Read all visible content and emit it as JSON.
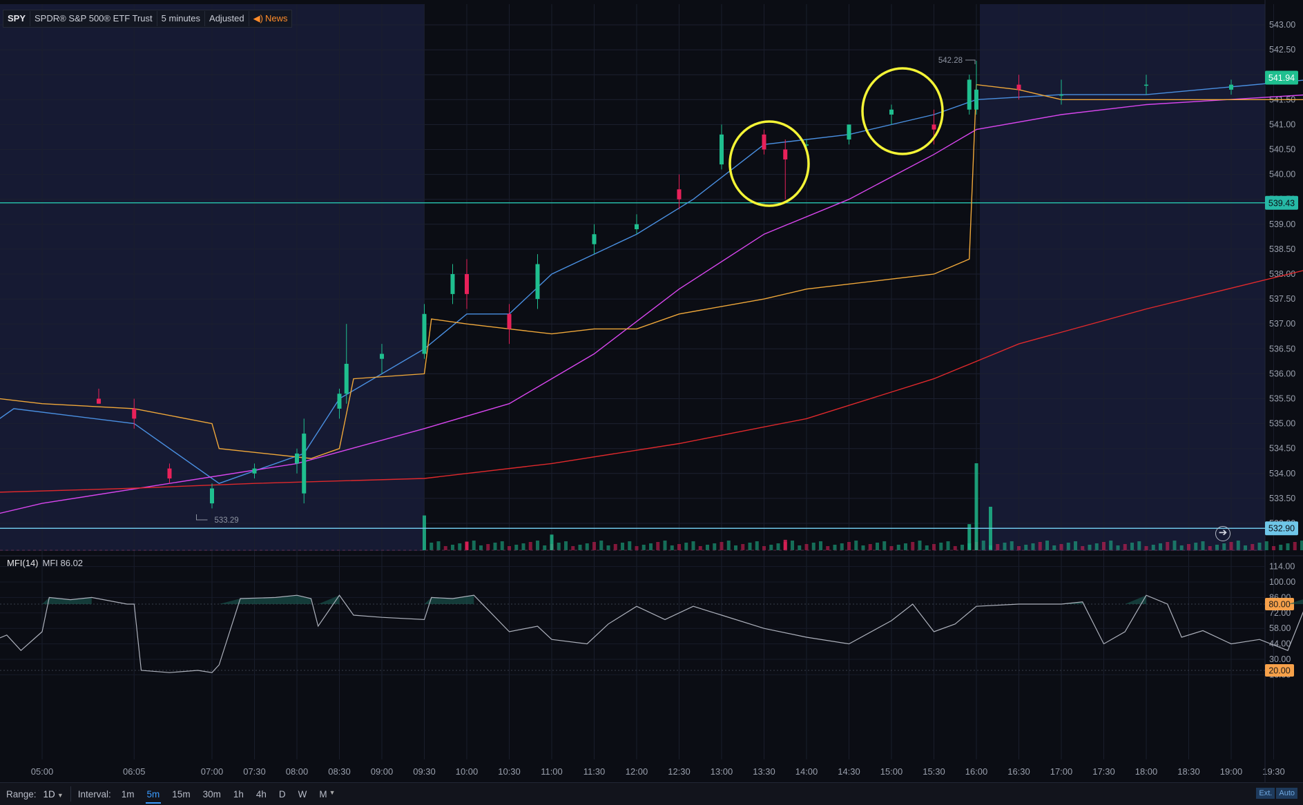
{
  "header": {
    "symbol": "SPY",
    "name": "SPDR® S&P 500® ETF Trust",
    "timeframe": "5 minutes",
    "adjustment": "Adjusted",
    "news": "News"
  },
  "indicator": {
    "name": "MFI(14)",
    "value_text": "MFI 86.02"
  },
  "bottom": {
    "range_label": "Range:",
    "range_value": "1D",
    "interval_label": "Interval:",
    "intervals": [
      "1m",
      "5m",
      "15m",
      "30m",
      "1h",
      "4h",
      "D",
      "W",
      "M"
    ],
    "active_interval": "5m",
    "ext": "Ext.",
    "auto": "Auto"
  },
  "colors": {
    "background": "#0b0d14",
    "extended_hours_bg": "#161a33",
    "up": "#1fbf8f",
    "down": "#e8215a",
    "ema_fast": "#4a90e2",
    "ema_mid": "#d946ef",
    "ema_slow": "#e0292c",
    "vwap": "#f0a83a",
    "level_line": "#26b9a6",
    "level_line_low": "#6fc6e8",
    "mfi_line": "#aeb2bd",
    "mfi_band": "#f7a14a",
    "highlight_circle": "#f4f436"
  },
  "chart_data": [
    {
      "type": "candlestick",
      "title": "",
      "price_axis": {
        "range": [
          532.8,
          543.2
        ],
        "ticks": [
          "543.00",
          "542.50",
          "542.00",
          "541.50",
          "541.00",
          "540.50",
          "540.00",
          "539.50",
          "539.00",
          "538.50",
          "538.00",
          "537.50",
          "537.00",
          "536.50",
          "536.00",
          "535.50",
          "535.00",
          "534.50",
          "534.00",
          "533.50",
          "533.00"
        ],
        "last_price": "541.94",
        "price_labels": [
          "539.43",
          "532.90"
        ],
        "horizontal_lines": [
          539.43,
          532.9
        ]
      },
      "time_axis": {
        "ticks": [
          "05:00",
          "06:05",
          "07:00",
          "07:30",
          "08:00",
          "08:30",
          "09:00",
          "09:30",
          "10:00",
          "10:30",
          "11:00",
          "11:30",
          "12:00",
          "12:30",
          "13:00",
          "13:30",
          "14:00",
          "14:30",
          "15:00",
          "15:30",
          "16:00",
          "16:30",
          "17:00",
          "17:30",
          "18:00",
          "18:30",
          "19:00",
          "19:30"
        ]
      },
      "annotations": {
        "high": "542.28",
        "low": "533.29"
      },
      "regular_session": [
        "09:30",
        "16:00"
      ],
      "candles_sampled": [
        {
          "t": "04:05",
          "o": 535.5,
          "h": 535.7,
          "l": 535.3,
          "c": 535.5
        },
        {
          "t": "05:40",
          "o": 535.5,
          "h": 535.7,
          "l": 535.4,
          "c": 535.4
        },
        {
          "t": "06:05",
          "o": 535.3,
          "h": 535.5,
          "l": 534.9,
          "c": 535.1
        },
        {
          "t": "06:30",
          "o": 534.1,
          "h": 534.2,
          "l": 533.8,
          "c": 533.9
        },
        {
          "t": "07:00",
          "o": 533.4,
          "h": 533.8,
          "l": 533.3,
          "c": 533.7
        },
        {
          "t": "07:30",
          "o": 534.0,
          "h": 534.2,
          "l": 533.9,
          "c": 534.1
        },
        {
          "t": "08:00",
          "o": 534.2,
          "h": 534.5,
          "l": 534.0,
          "c": 534.4
        },
        {
          "t": "08:05",
          "o": 533.6,
          "h": 535.1,
          "l": 533.4,
          "c": 534.8
        },
        {
          "t": "08:30",
          "o": 535.3,
          "h": 535.7,
          "l": 535.1,
          "c": 535.6
        },
        {
          "t": "08:35",
          "o": 535.6,
          "h": 537.0,
          "l": 535.4,
          "c": 536.2
        },
        {
          "t": "09:00",
          "o": 536.3,
          "h": 536.6,
          "l": 536.0,
          "c": 536.4
        },
        {
          "t": "09:30",
          "o": 536.4,
          "h": 537.4,
          "l": 536.3,
          "c": 537.2
        },
        {
          "t": "09:50",
          "o": 537.6,
          "h": 538.2,
          "l": 537.4,
          "c": 538.0
        },
        {
          "t": "10:00",
          "o": 538.0,
          "h": 538.3,
          "l": 537.3,
          "c": 537.6
        },
        {
          "t": "10:30",
          "o": 537.2,
          "h": 537.4,
          "l": 536.6,
          "c": 536.9
        },
        {
          "t": "10:50",
          "o": 537.5,
          "h": 538.4,
          "l": 537.3,
          "c": 538.2
        },
        {
          "t": "11:30",
          "o": 538.6,
          "h": 539.0,
          "l": 538.4,
          "c": 538.8
        },
        {
          "t": "12:00",
          "o": 538.9,
          "h": 539.2,
          "l": 538.8,
          "c": 539.0
        },
        {
          "t": "12:30",
          "o": 539.7,
          "h": 540.0,
          "l": 539.3,
          "c": 539.5
        },
        {
          "t": "13:00",
          "o": 540.2,
          "h": 541.0,
          "l": 540.1,
          "c": 540.8
        },
        {
          "t": "13:30",
          "o": 540.8,
          "h": 540.9,
          "l": 540.4,
          "c": 540.5
        },
        {
          "t": "13:45",
          "o": 540.5,
          "h": 540.7,
          "l": 539.5,
          "c": 540.3
        },
        {
          "t": "14:00",
          "o": 540.6,
          "h": 540.7,
          "l": 540.4,
          "c": 540.6
        },
        {
          "t": "14:30",
          "o": 540.7,
          "h": 541.0,
          "l": 540.6,
          "c": 541.0
        },
        {
          "t": "15:00",
          "o": 541.2,
          "h": 541.4,
          "l": 541.0,
          "c": 541.3
        },
        {
          "t": "15:30",
          "o": 541.0,
          "h": 541.3,
          "l": 540.6,
          "c": 540.9
        },
        {
          "t": "15:55",
          "o": 541.3,
          "h": 542.0,
          "l": 541.2,
          "c": 541.9
        },
        {
          "t": "16:00",
          "o": 541.3,
          "h": 542.28,
          "l": 541.2,
          "c": 541.7
        },
        {
          "t": "16:30",
          "o": 541.8,
          "h": 542.0,
          "l": 541.5,
          "c": 541.7
        },
        {
          "t": "17:00",
          "o": 541.6,
          "h": 541.9,
          "l": 541.4,
          "c": 541.6
        },
        {
          "t": "18:00",
          "o": 541.8,
          "h": 542.0,
          "l": 541.6,
          "c": 541.8
        },
        {
          "t": "19:00",
          "o": 541.7,
          "h": 541.9,
          "l": 541.6,
          "c": 541.8
        },
        {
          "t": "19:55",
          "o": 541.9,
          "h": 542.0,
          "l": 541.8,
          "c": 541.94
        }
      ],
      "series": [
        {
          "name": "ema_fast",
          "points": [
            [
              "04:00",
              534.5
            ],
            [
              "04:40",
              535.3
            ],
            [
              "06:05",
              535.0
            ],
            [
              "07:05",
              533.8
            ],
            [
              "08:05",
              534.4
            ],
            [
              "08:30",
              535.5
            ],
            [
              "09:30",
              536.5
            ],
            [
              "10:00",
              537.2
            ],
            [
              "10:30",
              537.2
            ],
            [
              "11:00",
              538.0
            ],
            [
              "12:00",
              538.8
            ],
            [
              "12:40",
              539.5
            ],
            [
              "13:30",
              540.6
            ],
            [
              "14:30",
              540.8
            ],
            [
              "15:30",
              541.2
            ],
            [
              "16:00",
              541.5
            ],
            [
              "17:00",
              541.6
            ],
            [
              "18:00",
              541.6
            ],
            [
              "19:55",
              541.9
            ]
          ]
        },
        {
          "name": "ema_mid",
          "points": [
            [
              "04:00",
              533.0
            ],
            [
              "05:00",
              533.4
            ],
            [
              "06:30",
              533.8
            ],
            [
              "08:00",
              534.2
            ],
            [
              "09:30",
              534.9
            ],
            [
              "10:30",
              535.4
            ],
            [
              "11:30",
              536.4
            ],
            [
              "12:30",
              537.7
            ],
            [
              "13:30",
              538.8
            ],
            [
              "14:30",
              539.5
            ],
            [
              "15:30",
              540.4
            ],
            [
              "16:00",
              540.9
            ],
            [
              "17:00",
              541.2
            ],
            [
              "18:00",
              541.4
            ],
            [
              "19:55",
              541.6
            ]
          ]
        },
        {
          "name": "ema_slow",
          "points": [
            [
              "04:00",
              533.6
            ],
            [
              "06:00",
              533.7
            ],
            [
              "07:30",
              533.8
            ],
            [
              "09:30",
              533.9
            ],
            [
              "11:00",
              534.2
            ],
            [
              "12:30",
              534.6
            ],
            [
              "14:00",
              535.1
            ],
            [
              "15:30",
              535.9
            ],
            [
              "16:30",
              536.6
            ],
            [
              "18:00",
              537.3
            ],
            [
              "19:55",
              538.1
            ]
          ]
        },
        {
          "name": "vwap",
          "points": [
            [
              "04:00",
              535.6
            ],
            [
              "05:00",
              535.4
            ],
            [
              "06:05",
              535.3
            ],
            [
              "07:00",
              535.0
            ],
            [
              "07:05",
              534.5
            ],
            [
              "08:10",
              534.3
            ],
            [
              "08:30",
              534.5
            ],
            [
              "08:40",
              535.9
            ],
            [
              "09:30",
              536.0
            ],
            [
              "09:35",
              537.1
            ],
            [
              "10:00",
              537.0
            ],
            [
              "10:30",
              536.9
            ],
            [
              "11:00",
              536.8
            ],
            [
              "11:30",
              536.9
            ],
            [
              "12:00",
              536.9
            ],
            [
              "12:30",
              537.2
            ],
            [
              "13:30",
              537.5
            ],
            [
              "14:00",
              537.7
            ],
            [
              "15:00",
              537.9
            ],
            [
              "15:30",
              538.0
            ],
            [
              "15:55",
              538.3
            ],
            [
              "16:00",
              541.8
            ],
            [
              "16:30",
              541.7
            ],
            [
              "17:00",
              541.5
            ],
            [
              "19:55",
              541.5
            ]
          ]
        }
      ],
      "volume_sampled": [
        {
          "t": "09:30",
          "v": 0.4,
          "up": true
        },
        {
          "t": "10:00",
          "v": 0.1,
          "up": false
        },
        {
          "t": "11:00",
          "v": 0.18,
          "up": true
        },
        {
          "t": "13:45",
          "v": 0.12,
          "up": false
        },
        {
          "t": "15:55",
          "v": 0.3,
          "up": true
        },
        {
          "t": "16:00",
          "v": 1.0,
          "up": true
        },
        {
          "t": "16:10",
          "v": 0.5,
          "up": true
        }
      ]
    },
    {
      "type": "line",
      "title": "MFI(14)",
      "y_axis": {
        "range": [
          10,
          120
        ],
        "ticks": [
          "114.00",
          "100.00",
          "86.00",
          "72.00",
          "58.00",
          "44.00",
          "30.00",
          "16.00"
        ],
        "bands": [
          80,
          20
        ],
        "band_labels": [
          "80.00",
          "20.00"
        ]
      },
      "series": [
        {
          "name": "MFI",
          "points": [
            [
              "04:00",
              44
            ],
            [
              "04:20",
              44
            ],
            [
              "04:35",
              52
            ],
            [
              "04:45",
              38
            ],
            [
              "05:00",
              55
            ],
            [
              "05:05",
              86
            ],
            [
              "05:20",
              84
            ],
            [
              "05:35",
              86
            ],
            [
              "06:00",
              80
            ],
            [
              "06:05",
              80
            ],
            [
              "06:10",
              20
            ],
            [
              "06:30",
              18
            ],
            [
              "06:50",
              20
            ],
            [
              "07:00",
              18
            ],
            [
              "07:05",
              25
            ],
            [
              "07:20",
              85
            ],
            [
              "07:45",
              86
            ],
            [
              "08:00",
              88
            ],
            [
              "08:10",
              85
            ],
            [
              "08:15",
              60
            ],
            [
              "08:30",
              88
            ],
            [
              "08:40",
              70
            ],
            [
              "09:00",
              68
            ],
            [
              "09:30",
              66
            ],
            [
              "09:35",
              86
            ],
            [
              "09:50",
              85
            ],
            [
              "10:05",
              88
            ],
            [
              "10:30",
              55
            ],
            [
              "10:50",
              60
            ],
            [
              "11:00",
              48
            ],
            [
              "11:25",
              44
            ],
            [
              "11:40",
              62
            ],
            [
              "12:00",
              78
            ],
            [
              "12:20",
              66
            ],
            [
              "12:40",
              78
            ],
            [
              "13:00",
              70
            ],
            [
              "13:30",
              58
            ],
            [
              "14:00",
              50
            ],
            [
              "14:30",
              44
            ],
            [
              "15:00",
              65
            ],
            [
              "15:15",
              80
            ],
            [
              "15:30",
              55
            ],
            [
              "15:45",
              62
            ],
            [
              "16:00",
              78
            ],
            [
              "16:30",
              80
            ],
            [
              "17:00",
              80
            ],
            [
              "17:15",
              82
            ],
            [
              "17:30",
              44
            ],
            [
              "17:45",
              55
            ],
            [
              "18:00",
              88
            ],
            [
              "18:15",
              80
            ],
            [
              "18:25",
              50
            ],
            [
              "18:40",
              56
            ],
            [
              "19:00",
              44
            ],
            [
              "19:20",
              48
            ],
            [
              "19:40",
              38
            ],
            [
              "19:55",
              86
            ]
          ]
        }
      ]
    }
  ]
}
